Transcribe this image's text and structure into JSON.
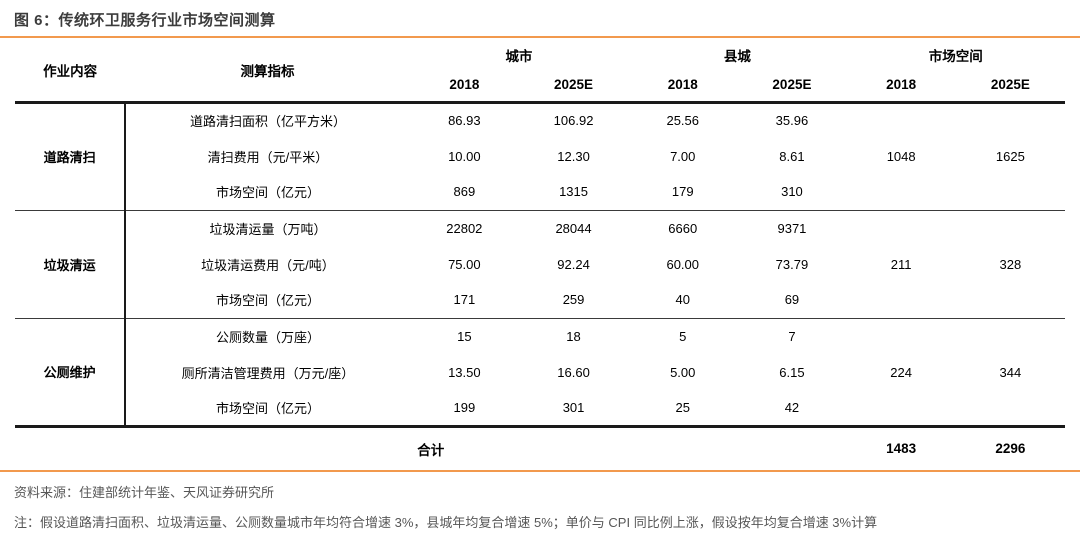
{
  "title": "图 6：传统环卫服务行业市场空间测算",
  "colors": {
    "accent_orange": "#f2994d",
    "title_gray": "#3c3c3c",
    "footer_gray": "#575757",
    "table_line_black": "#1a1a1a"
  },
  "table": {
    "headers": {
      "work_content": "作业内容",
      "indicator": "测算指标",
      "groups": [
        {
          "label": "城市",
          "years": [
            "2018",
            "2025E"
          ]
        },
        {
          "label": "县城",
          "years": [
            "2018",
            "2025E"
          ]
        },
        {
          "label": "市场空间",
          "years": [
            "2018",
            "2025E"
          ]
        }
      ]
    },
    "sections": [
      {
        "name": "道路清扫",
        "rows": [
          {
            "indicator": "道路清扫面积（亿平方米）",
            "values": [
              "86.93",
              "106.92",
              "25.56",
              "35.96"
            ]
          },
          {
            "indicator": "清扫费用（元/平米）",
            "values": [
              "10.00",
              "12.30",
              "7.00",
              "8.61"
            ],
            "market": [
              "1048",
              "1625"
            ]
          },
          {
            "indicator": "市场空间（亿元）",
            "values": [
              "869",
              "1315",
              "179",
              "310"
            ]
          }
        ]
      },
      {
        "name": "垃圾清运",
        "rows": [
          {
            "indicator": "垃圾清运量（万吨）",
            "values": [
              "22802",
              "28044",
              "6660",
              "9371"
            ]
          },
          {
            "indicator": "垃圾清运费用（元/吨）",
            "values": [
              "75.00",
              "92.24",
              "60.00",
              "73.79"
            ],
            "market": [
              "211",
              "328"
            ]
          },
          {
            "indicator": "市场空间（亿元）",
            "values": [
              "171",
              "259",
              "40",
              "69"
            ]
          }
        ]
      },
      {
        "name": "公厕维护",
        "rows": [
          {
            "indicator": "公厕数量（万座）",
            "values": [
              "15",
              "18",
              "5",
              "7"
            ]
          },
          {
            "indicator": "厕所清洁管理费用（万元/座）",
            "values": [
              "13.50",
              "16.60",
              "5.00",
              "6.15"
            ],
            "market": [
              "224",
              "344"
            ]
          },
          {
            "indicator": "市场空间（亿元）",
            "values": [
              "199",
              "301",
              "25",
              "42"
            ]
          }
        ]
      }
    ],
    "total": {
      "label": "合计",
      "values": [
        "1483",
        "2296"
      ]
    }
  },
  "footer": {
    "source": "资料来源：住建部统计年鉴、天风证券研究所",
    "note": "注：假设道路清扫面积、垃圾清运量、公厕数量城市年均符合增速 3%，县城年均复合增速 5%；单价与 CPI 同比例上涨，假设按年均复合增速 3%计算"
  }
}
